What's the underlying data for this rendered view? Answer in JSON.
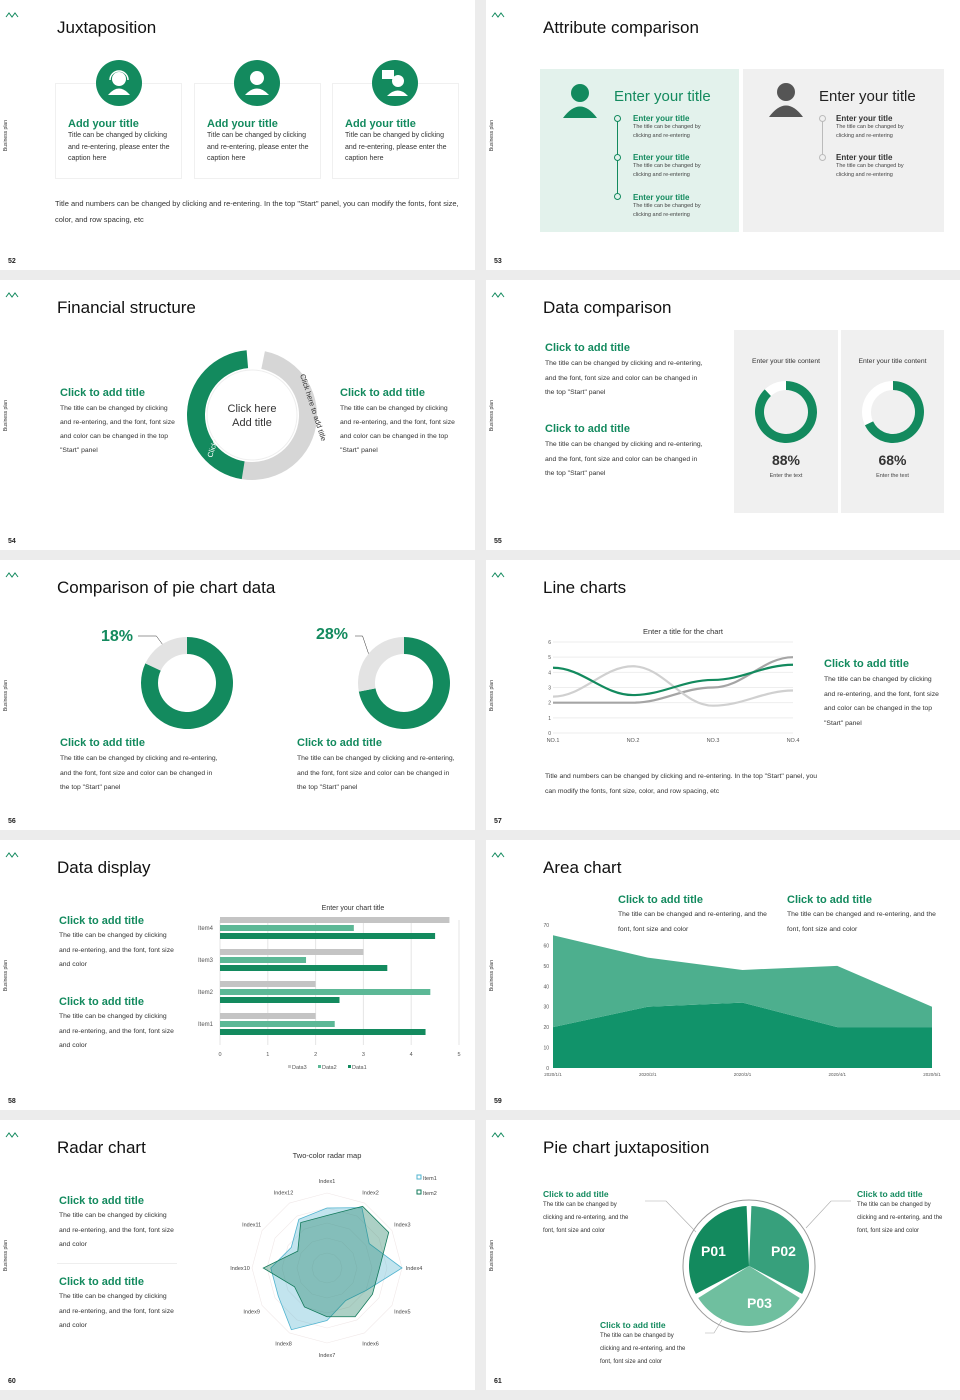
{
  "common": {
    "side_label": "Business plan",
    "accent": "#138a5e",
    "accent_light": "#4caf8e",
    "gray": "#c8c8c8"
  },
  "s52": {
    "num": "52",
    "title": "Juxtaposition",
    "cards": [
      {
        "icon": "headset-person-icon",
        "title": "Add your title",
        "text": "Title can be changed by clicking and re-entering, please enter the caption here"
      },
      {
        "icon": "person-icon",
        "title": "Add your title",
        "text": "Title can be changed by clicking and re-entering, please enter the caption here"
      },
      {
        "icon": "presenter-icon",
        "title": "Add your title",
        "text": "Title can be changed by clicking and re-entering, please enter the caption here"
      }
    ],
    "footer": "Title and numbers can be changed by clicking and re-entering. In the top \"Start\" panel, you can modify the fonts, font size, color, and row spacing, etc"
  },
  "s53": {
    "num": "53",
    "title": "Attribute comparison",
    "left": {
      "heading": "Enter your title",
      "items": [
        {
          "title": "Enter your title",
          "text": "The title can be changed by clicking and re-entering"
        },
        {
          "title": "Enter your title",
          "text": "The title can be changed by clicking and re-entering"
        },
        {
          "title": "Enter your title",
          "text": "The title can be changed by clicking and re-entering"
        }
      ]
    },
    "right": {
      "heading": "Enter your title",
      "items": [
        {
          "title": "Enter your title",
          "text": "The title can be changed by clicking and re-entering"
        },
        {
          "title": "Enter your title",
          "text": "The title can be changed by clicking and re-entering"
        }
      ]
    }
  },
  "s54": {
    "num": "54",
    "title": "Financial structure",
    "center": "Click here Add title",
    "arrow_left": "Click here to add title",
    "arrow_right": "Click here to add title",
    "left": {
      "title": "Click to add title",
      "text": "The title can be changed by clicking and re-entering, and the font, font size and color can be changed in the top \"Start\" panel"
    },
    "right": {
      "title": "Click to add title",
      "text": "The title can be changed by clicking and re-entering, and the font, font size and color can be changed in the top \"Start\" panel"
    }
  },
  "s55": {
    "num": "55",
    "title": "Data comparison",
    "blocks": [
      {
        "title": "Click to add title",
        "text": "The title can be changed by clicking and re-entering, and the font, font size and color can be changed in the top \"Start\" panel"
      },
      {
        "title": "Click to add title",
        "text": "The title can be changed by clicking and re-entering, and the font, font size and color can be changed in the top \"Start\" panel"
      }
    ],
    "panels": [
      {
        "heading": "Enter your title content",
        "value": 88,
        "label": "88%",
        "caption": "Enter the text"
      },
      {
        "heading": "Enter your title content",
        "value": 68,
        "label": "68%",
        "caption": "Enter the text"
      }
    ]
  },
  "s56": {
    "num": "56",
    "title": "Comparison of pie chart data",
    "pies": [
      {
        "value": 18,
        "label": "18%",
        "title": "Click to add title",
        "text": "The title can be changed by clicking and re-entering, and the font, font size and color can be changed in the top \"Start\" panel"
      },
      {
        "value": 28,
        "label": "28%",
        "title": "Click to add title",
        "text": "The title can be changed by clicking and re-entering, and the font, font size and color can be changed in the top \"Start\" panel"
      }
    ]
  },
  "s57": {
    "num": "57",
    "title": "Line charts",
    "side_title": "Click to add title",
    "side_text": "The title can be changed by clicking and re-entering, and the font, font size and color can be changed in the top \"Start\" panel",
    "footer": "Title and numbers can be changed by clicking and re-entering. In the top \"Start\" panel, you can modify the fonts, font size, color, and row spacing, etc"
  },
  "s58": {
    "num": "58",
    "title": "Data display",
    "blocks": [
      {
        "title": "Click to add title",
        "text": "The title can be changed by clicking and re-entering, and the font, font size and color"
      },
      {
        "title": "Click to add title",
        "text": "The title can be changed by clicking and re-entering, and the font, font size and color"
      }
    ]
  },
  "s59": {
    "num": "59",
    "title": "Area chart",
    "blocks": [
      {
        "title": "Click to add title",
        "text": "The title can be changed and re-entering, and the font, font size and color"
      },
      {
        "title": "Click to add title",
        "text": "The title can be changed and re-entering, and the font, font size and color"
      }
    ]
  },
  "s60": {
    "num": "60",
    "title": "Radar chart",
    "blocks": [
      {
        "title": "Click to add title",
        "text": "The title can be changed by clicking and re-entering, and the font, font size and color"
      },
      {
        "title": "Click to add title",
        "text": "The title can be changed by clicking and re-entering, and the font, font size and color"
      }
    ]
  },
  "s61": {
    "num": "61",
    "title": "Pie chart juxtaposition",
    "segments": [
      "P01",
      "P02",
      "P03"
    ],
    "blocks": [
      {
        "title": "Click to add title",
        "text": "The title can be changed by clicking and re-entering, and the font, font size and color"
      },
      {
        "title": "Click to add title",
        "text": "The title can be changed by clicking and re-entering, and the font, font size and color"
      },
      {
        "title": "Click to add title",
        "text": "The title can be changed by clicking and re-entering, and the font, font size and color"
      }
    ]
  },
  "chart_data": [
    {
      "type": "line",
      "title": "Enter a title for the chart",
      "categories": [
        "NO.1",
        "NO.2",
        "NO.3",
        "NO.4"
      ],
      "ylim": [
        0,
        6
      ],
      "yticks": [
        0,
        1,
        2,
        3,
        4,
        5,
        6
      ],
      "grid": true,
      "series": [
        {
          "color": "#138a5e",
          "values": [
            4.3,
            2.5,
            3.5,
            4.5
          ]
        },
        {
          "color": "#d0d0d0",
          "values": [
            2.4,
            4.4,
            1.8,
            2.8
          ]
        },
        {
          "color": "#a5a5a5",
          "values": [
            2.0,
            2.0,
            3.0,
            5.0
          ]
        }
      ]
    },
    {
      "type": "bar",
      "orientation": "horizontal",
      "title": "Enter your chart title",
      "categories": [
        "Item1",
        "Item2",
        "Item3",
        "Item4"
      ],
      "xlim": [
        0,
        5
      ],
      "xticks": [
        0,
        1,
        2,
        3,
        4,
        5
      ],
      "legend": "bottom",
      "series": [
        {
          "name": "Data1",
          "color": "#138a5e",
          "values": [
            4.3,
            2.5,
            3.5,
            4.5
          ]
        },
        {
          "name": "Data2",
          "color": "#5cb896",
          "values": [
            2.4,
            4.4,
            1.8,
            2.8
          ]
        },
        {
          "name": "Data3",
          "color": "#c4c4c4",
          "values": [
            2,
            2,
            3,
            4.8
          ]
        }
      ]
    },
    {
      "type": "area",
      "stacked": true,
      "categories": [
        "2020/1/1",
        "2020/2/1",
        "2020/3/1",
        "2020/4/1",
        "2020/5/1"
      ],
      "ylim": [
        0,
        70
      ],
      "yticks": [
        0,
        10,
        20,
        30,
        40,
        50,
        60,
        70
      ],
      "series": [
        {
          "color": "#11936a",
          "values": [
            20,
            30,
            32,
            20,
            20
          ]
        },
        {
          "color": "#4daf8e",
          "values": [
            45,
            24,
            16,
            30,
            10
          ]
        }
      ]
    },
    {
      "type": "radar",
      "title": "Two-color radar map",
      "categories": [
        "Index1",
        "Index2",
        "Index3",
        "Index4",
        "Index5",
        "Index6",
        "Index7",
        "Index8",
        "Index9",
        "Index10",
        "Index11",
        "Index12"
      ],
      "rmax": 10,
      "legend": "top-right",
      "series": [
        {
          "name": "Item1",
          "color": "#4fb3cf",
          "values": [
            8,
            9.3,
            6.5,
            10,
            6,
            5,
            7,
            9.5,
            7.5,
            7.5,
            5.5,
            7.5
          ]
        },
        {
          "name": "Item2",
          "color": "#11795a",
          "values": [
            7,
            9.5,
            9.5,
            7,
            7,
            7.5,
            6.5,
            6,
            5,
            8.5,
            4.5,
            7
          ]
        }
      ]
    }
  ]
}
